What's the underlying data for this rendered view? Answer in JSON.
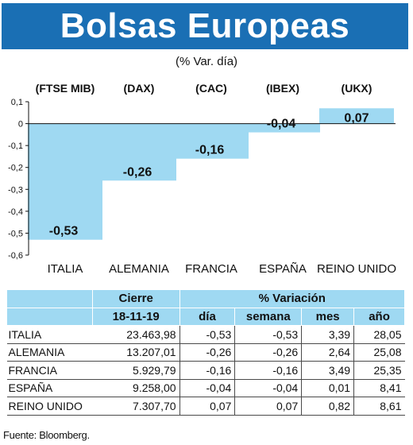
{
  "title": "Bolsas Europeas",
  "subtitle": "(% Var. día)",
  "colors": {
    "title_bg": "#1a6fb4",
    "bar": "#9fd9f2",
    "header_bg": "#9fd9f2"
  },
  "chart_data": {
    "type": "bar",
    "categories": [
      "ITALIA",
      "ALEMANIA",
      "FRANCIA",
      "ESPAÑA",
      "REINO UNIDO"
    ],
    "index_labels": [
      "(FTSE MIB)",
      "(DAX)",
      "(CAC)",
      "(IBEX)",
      "(UKX)"
    ],
    "values": [
      -0.53,
      -0.26,
      -0.16,
      -0.04,
      0.07
    ],
    "value_labels": [
      "-0,53",
      "-0,26",
      "-0,16",
      "-0,04",
      "0,07"
    ],
    "ylim": [
      -0.6,
      0.1
    ],
    "yticks": [
      0.1,
      0,
      -0.1,
      -0.2,
      -0.3,
      -0.4,
      -0.5,
      -0.6
    ],
    "ytick_labels": [
      "0,1",
      "0",
      "-0,1",
      "-0,2",
      "-0,3",
      "-0,4",
      "-0,5",
      "-0,6"
    ]
  },
  "table": {
    "header_group_cierre": "Cierre",
    "header_group_variacion": "% Variación",
    "header_date": "18-11-19",
    "header_cols": [
      "día",
      "semana",
      "mes",
      "año"
    ],
    "rows": [
      {
        "name": "ITALIA",
        "cierre": "23.463,98",
        "dia": "-0,53",
        "semana": "-0,53",
        "mes": "3,39",
        "anio": "28,05"
      },
      {
        "name": "ALEMANIA",
        "cierre": "13.207,01",
        "dia": "-0,26",
        "semana": "-0,26",
        "mes": "2,64",
        "anio": "25,08"
      },
      {
        "name": "FRANCIA",
        "cierre": "5.929,79",
        "dia": "-0,16",
        "semana": "-0,16",
        "mes": "3,49",
        "anio": "25,35"
      },
      {
        "name": "ESPAÑA",
        "cierre": "9.258,00",
        "dia": "-0,04",
        "semana": "-0,04",
        "mes": "0,01",
        "anio": "8,41"
      },
      {
        "name": "REINO UNIDO",
        "cierre": "7.307,70",
        "dia": "0,07",
        "semana": "0,07",
        "mes": "0,82",
        "anio": "8,61"
      }
    ]
  },
  "source": "Fuente: Bloomberg."
}
